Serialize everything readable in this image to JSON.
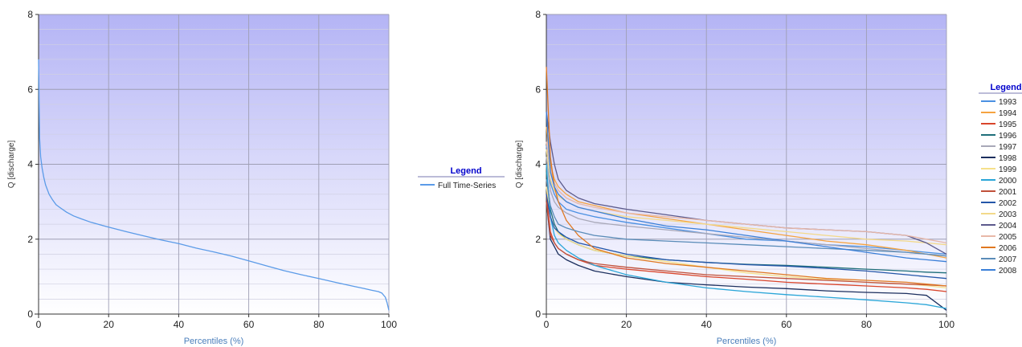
{
  "colors": {
    "legend_title": "#0000cc",
    "axis_title": "#4a7ebb",
    "single_series": "#5b9be8"
  },
  "chart_data": [
    {
      "type": "line",
      "xlabel": "Percentiles (%)",
      "ylabel": "Q [discharge]",
      "xlim": [
        0,
        100
      ],
      "ylim": [
        0,
        8
      ],
      "x_ticks": [
        "0",
        "20",
        "40",
        "60",
        "80",
        "100"
      ],
      "y_ticks": [
        "0",
        "2",
        "4",
        "6",
        "8"
      ],
      "grid": true,
      "background": "vertical gradient, lavender at top to white at bottom",
      "legend": {
        "title": "Legend",
        "placement": "right"
      },
      "series": [
        {
          "name": "Full Time-Series",
          "color": "#5b9be8",
          "x": [
            0,
            0.3,
            0.6,
            1,
            1.5,
            2,
            3,
            4,
            5,
            6,
            8,
            10,
            12,
            15,
            20,
            25,
            30,
            35,
            40,
            45,
            50,
            55,
            60,
            65,
            70,
            75,
            80,
            85,
            90,
            93,
            95,
            97,
            98,
            99,
            99.5,
            100
          ],
          "y": [
            6.8,
            4.7,
            4.2,
            3.9,
            3.65,
            3.45,
            3.2,
            3.05,
            2.92,
            2.85,
            2.72,
            2.62,
            2.55,
            2.45,
            2.32,
            2.2,
            2.09,
            1.98,
            1.88,
            1.76,
            1.66,
            1.55,
            1.42,
            1.29,
            1.16,
            1.05,
            0.95,
            0.84,
            0.74,
            0.68,
            0.64,
            0.6,
            0.56,
            0.45,
            0.3,
            0.1
          ]
        }
      ]
    },
    {
      "type": "line",
      "xlabel": "Percentiles (%)",
      "ylabel": "Q [discharge]",
      "xlim": [
        0,
        100
      ],
      "ylim": [
        0,
        8
      ],
      "x_ticks": [
        "0",
        "20",
        "40",
        "60",
        "80",
        "100"
      ],
      "y_ticks": [
        "0",
        "2",
        "4",
        "6",
        "8"
      ],
      "grid": true,
      "background": "vertical gradient, lavender at top to white at bottom",
      "legend": {
        "title": "Legend",
        "placement": "right"
      },
      "x": [
        0,
        1,
        2,
        3,
        5,
        8,
        12,
        20,
        30,
        40,
        50,
        60,
        70,
        80,
        90,
        95,
        100
      ],
      "series": [
        {
          "name": "1993",
          "color": "#4a90e2",
          "y": [
            4.5,
            3.5,
            3.2,
            3.0,
            2.8,
            2.7,
            2.6,
            2.45,
            2.3,
            2.15,
            2.0,
            1.95,
            1.85,
            1.8,
            1.7,
            1.65,
            1.6
          ]
        },
        {
          "name": "1994",
          "color": "#f5a340",
          "y": [
            5.0,
            4.0,
            3.6,
            3.4,
            3.2,
            3.0,
            2.9,
            2.7,
            2.55,
            2.4,
            2.25,
            2.1,
            1.95,
            1.85,
            1.7,
            1.6,
            1.5
          ]
        },
        {
          "name": "1995",
          "color": "#d9452b",
          "y": [
            3.2,
            2.2,
            1.9,
            1.75,
            1.6,
            1.45,
            1.3,
            1.2,
            1.1,
            1.0,
            0.93,
            0.85,
            0.8,
            0.75,
            0.7,
            0.66,
            0.6
          ]
        },
        {
          "name": "1996",
          "color": "#1f6f7a",
          "y": [
            3.8,
            2.8,
            2.4,
            2.2,
            2.0,
            1.85,
            1.7,
            1.55,
            1.45,
            1.38,
            1.33,
            1.3,
            1.25,
            1.2,
            1.15,
            1.12,
            1.1
          ]
        },
        {
          "name": "1997",
          "color": "#a8a8b8",
          "y": [
            4.2,
            3.3,
            3.0,
            2.85,
            2.7,
            2.55,
            2.45,
            2.35,
            2.25,
            2.15,
            2.05,
            1.95,
            1.85,
            1.75,
            1.65,
            1.6,
            1.55
          ]
        },
        {
          "name": "1998",
          "color": "#1c2f5e",
          "y": [
            3.0,
            2.0,
            1.8,
            1.6,
            1.45,
            1.3,
            1.15,
            1.0,
            0.85,
            0.78,
            0.72,
            0.68,
            0.62,
            0.58,
            0.55,
            0.5,
            0.1
          ]
        },
        {
          "name": "1999",
          "color": "#f6e08a",
          "y": [
            3.4,
            2.6,
            2.3,
            2.15,
            2.0,
            1.85,
            1.7,
            1.55,
            1.4,
            1.25,
            1.1,
            1.0,
            0.92,
            0.85,
            0.8,
            0.76,
            0.7
          ]
        },
        {
          "name": "2000",
          "color": "#2aa6d8",
          "y": [
            4.0,
            2.6,
            2.1,
            1.9,
            1.7,
            1.5,
            1.3,
            1.05,
            0.85,
            0.7,
            0.6,
            0.52,
            0.45,
            0.38,
            0.3,
            0.25,
            0.15
          ]
        },
        {
          "name": "2001",
          "color": "#c0503a",
          "y": [
            3.0,
            2.1,
            1.9,
            1.75,
            1.6,
            1.45,
            1.35,
            1.25,
            1.15,
            1.05,
            1.0,
            0.95,
            0.9,
            0.85,
            0.8,
            0.78,
            0.75
          ]
        },
        {
          "name": "2002",
          "color": "#2456a8",
          "y": [
            3.2,
            2.6,
            2.3,
            2.2,
            2.05,
            1.9,
            1.8,
            1.6,
            1.45,
            1.38,
            1.32,
            1.28,
            1.22,
            1.15,
            1.05,
            1.0,
            0.95
          ]
        },
        {
          "name": "2003",
          "color": "#f3d98a",
          "y": [
            4.4,
            3.6,
            3.3,
            3.15,
            3.0,
            2.85,
            2.75,
            2.6,
            2.5,
            2.4,
            2.3,
            2.2,
            2.1,
            2.0,
            1.95,
            1.9,
            1.85
          ]
        },
        {
          "name": "2004",
          "color": "#5c5a8c",
          "y": [
            5.4,
            4.6,
            4.0,
            3.6,
            3.3,
            3.1,
            2.95,
            2.8,
            2.65,
            2.5,
            2.4,
            2.3,
            2.25,
            2.2,
            2.1,
            1.9,
            1.6
          ]
        },
        {
          "name": "2005",
          "color": "#e8b8a8",
          "y": [
            4.6,
            3.9,
            3.5,
            3.3,
            3.1,
            2.95,
            2.85,
            2.7,
            2.6,
            2.5,
            2.4,
            2.3,
            2.25,
            2.2,
            2.1,
            2.0,
            1.9
          ]
        },
        {
          "name": "2006",
          "color": "#e07820",
          "y": [
            6.6,
            4.2,
            3.4,
            3.0,
            2.5,
            2.1,
            1.75,
            1.5,
            1.35,
            1.25,
            1.15,
            1.05,
            0.95,
            0.9,
            0.85,
            0.8,
            0.75
          ]
        },
        {
          "name": "2007",
          "color": "#5a8cb8",
          "y": [
            3.6,
            2.9,
            2.6,
            2.4,
            2.3,
            2.2,
            2.1,
            2.0,
            1.95,
            1.9,
            1.85,
            1.8,
            1.75,
            1.7,
            1.65,
            1.6,
            1.55
          ]
        },
        {
          "name": "2008",
          "color": "#3a7fd8",
          "y": [
            5.4,
            3.8,
            3.4,
            3.2,
            3.0,
            2.85,
            2.75,
            2.55,
            2.35,
            2.25,
            2.1,
            1.95,
            1.8,
            1.65,
            1.5,
            1.45,
            1.4
          ]
        }
      ]
    }
  ]
}
